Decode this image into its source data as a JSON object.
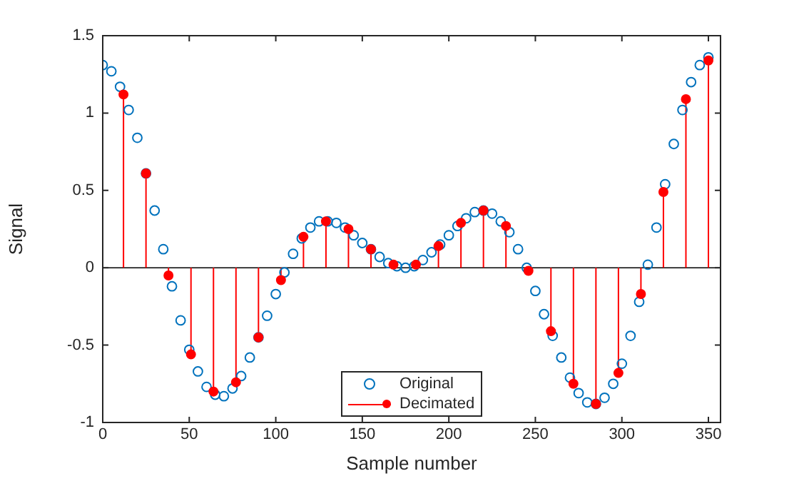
{
  "chart_data": {
    "type": "scatter",
    "xlabel": "Sample number",
    "ylabel": "Signal",
    "xlim": [
      0,
      357
    ],
    "ylim": [
      -1,
      1.5
    ],
    "xticks": [
      0,
      50,
      100,
      150,
      200,
      250,
      300,
      350
    ],
    "yticks": [
      -1,
      -0.5,
      0,
      0.5,
      1,
      1.5
    ],
    "legend": "bottom",
    "series": [
      {
        "name": "Original",
        "marker": "circle",
        "color": "#0072bd",
        "x": [
          0,
          5,
          10,
          15,
          20,
          25,
          30,
          35,
          40,
          45,
          50,
          55,
          60,
          65,
          70,
          75,
          80,
          85,
          90,
          95,
          100,
          105,
          110,
          115,
          120,
          125,
          130,
          135,
          140,
          145,
          150,
          155,
          160,
          165,
          170,
          175,
          180,
          185,
          190,
          195,
          200,
          205,
          210,
          215,
          220,
          225,
          230,
          235,
          240,
          245,
          250,
          255,
          260,
          265,
          270,
          275,
          280,
          285,
          290,
          295,
          300,
          305,
          310,
          315,
          320,
          325,
          330,
          335,
          340,
          345,
          350
        ],
        "values": [
          1.31,
          1.27,
          1.17,
          1.02,
          0.84,
          0.61,
          0.37,
          0.12,
          -0.12,
          -0.34,
          -0.53,
          -0.67,
          -0.77,
          -0.82,
          -0.83,
          -0.78,
          -0.7,
          -0.58,
          -0.45,
          -0.31,
          -0.17,
          -0.03,
          0.09,
          0.19,
          0.26,
          0.3,
          0.3,
          0.29,
          0.26,
          0.21,
          0.16,
          0.12,
          0.07,
          0.03,
          0.01,
          0,
          0.01,
          0.05,
          0.1,
          0.15,
          0.21,
          0.27,
          0.32,
          0.36,
          0.37,
          0.35,
          0.3,
          0.23,
          0.12,
          0,
          -0.15,
          -0.3,
          -0.44,
          -0.58,
          -0.71,
          -0.81,
          -0.87,
          -0.88,
          -0.84,
          -0.75,
          -0.62,
          -0.44,
          -0.22,
          0.02,
          0.26,
          0.54,
          0.8,
          1.02,
          1.2,
          1.31,
          1.36
        ]
      },
      {
        "name": "Decimated",
        "type": "lollipop",
        "marker": "circle",
        "color": "#ff0000",
        "x": [
          12,
          25,
          38,
          51,
          64,
          77,
          90,
          103,
          116,
          129,
          142,
          155,
          168,
          181,
          194,
          207,
          220,
          233,
          246,
          259,
          272,
          285,
          298,
          311,
          324,
          337,
          350
        ],
        "values": [
          1.12,
          0.61,
          -0.05,
          -0.56,
          -0.8,
          -0.74,
          -0.45,
          -0.08,
          0.2,
          0.3,
          0.25,
          0.12,
          0.02,
          0.02,
          0.14,
          0.29,
          0.37,
          0.27,
          -0.02,
          -0.41,
          -0.75,
          -0.88,
          -0.68,
          -0.17,
          0.49,
          1.09,
          1.34
        ]
      }
    ]
  }
}
